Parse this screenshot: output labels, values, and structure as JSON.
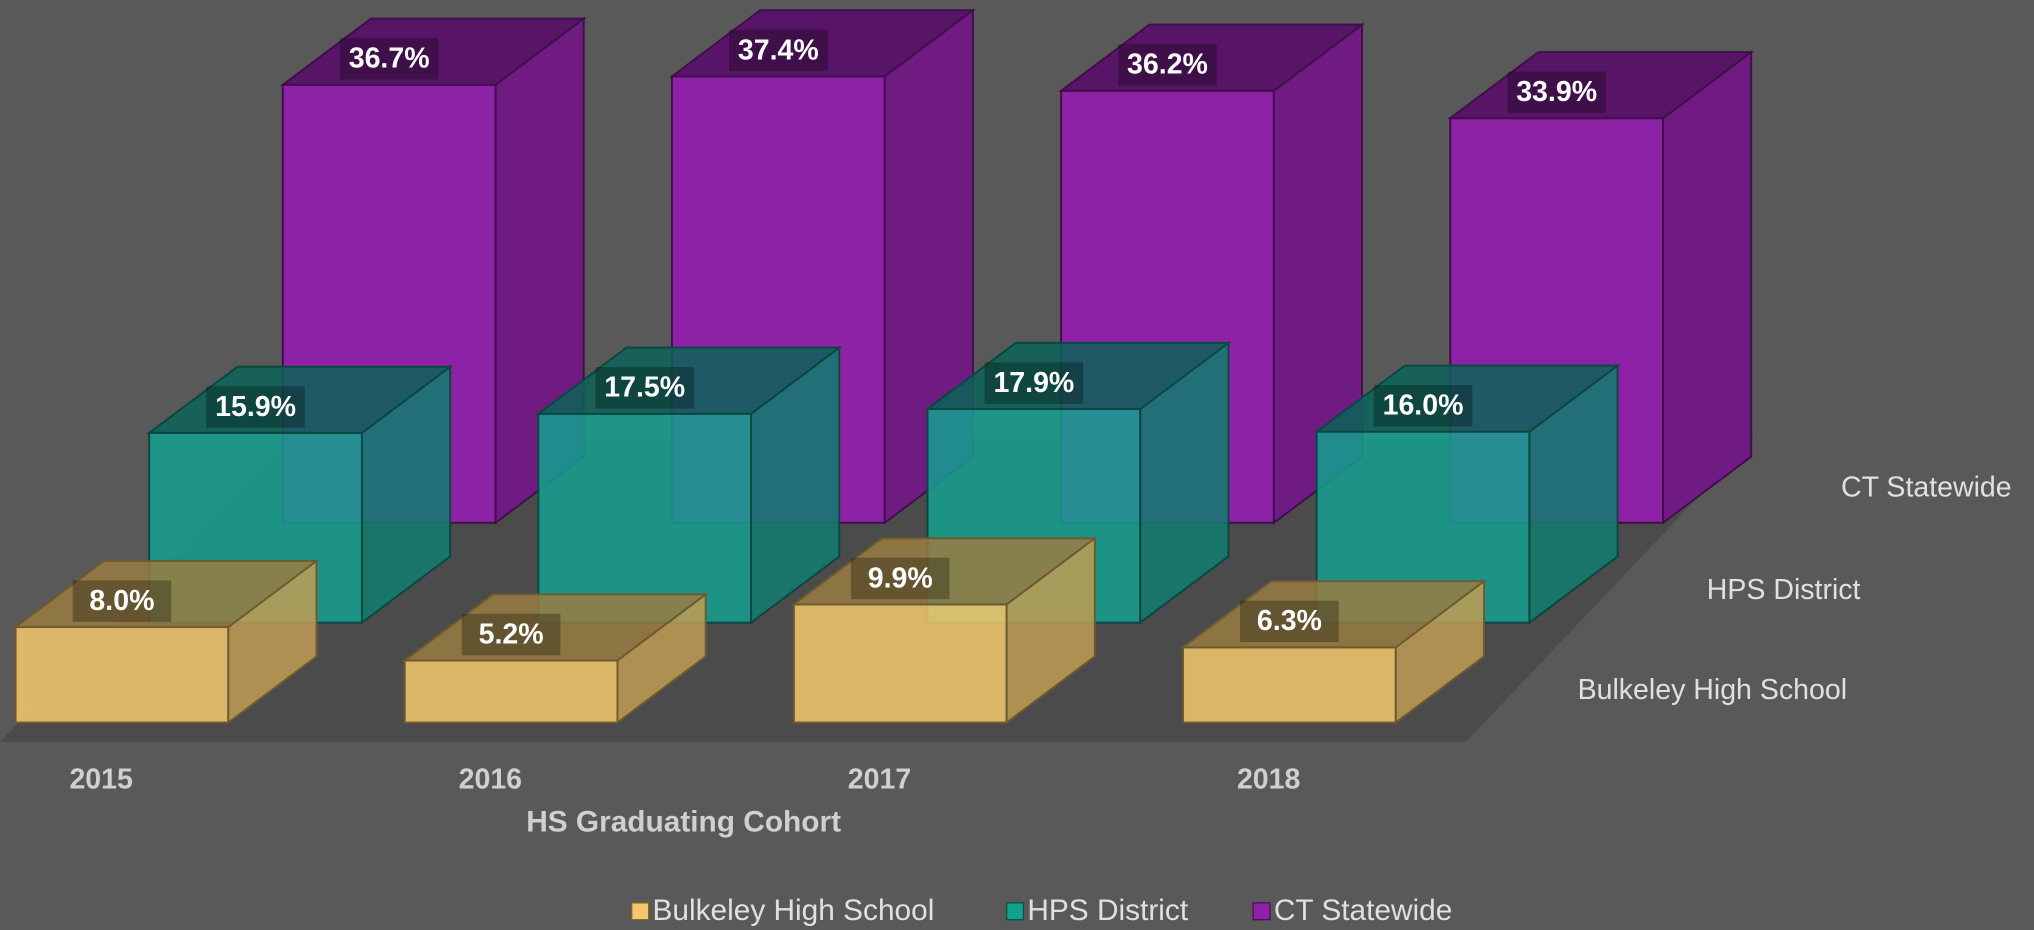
{
  "chart_data": {
    "type": "bar3d",
    "categories": [
      "2015",
      "2016",
      "2017",
      "2018"
    ],
    "x_label": "HS Graduating Cohort",
    "series": [
      {
        "name": "Bulkeley High School",
        "color": "#f5c96b",
        "values": [
          8.0,
          5.2,
          9.9,
          6.3
        ],
        "value_labels": [
          "8.0%",
          "5.2%",
          "9.9%",
          "6.3%"
        ]
      },
      {
        "name": "HPS District",
        "color": "#14a08f",
        "values": [
          15.9,
          17.5,
          17.9,
          16.0
        ],
        "value_labels": [
          "15.9%",
          "17.5%",
          "17.9%",
          "16.0%"
        ]
      },
      {
        "name": "CT Statewide",
        "color": "#8e22a6",
        "values": [
          36.7,
          37.4,
          36.2,
          33.9
        ],
        "value_labels": [
          "36.7%",
          "37.4%",
          "36.2%",
          "33.9%"
        ]
      }
    ],
    "legend": "bottom"
  }
}
